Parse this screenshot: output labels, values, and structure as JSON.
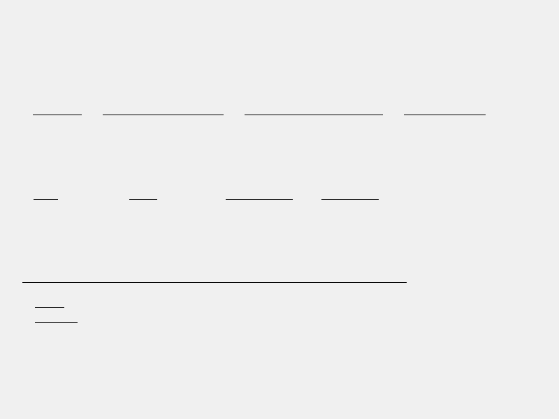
{
  "form": {
    "row1": [
      "",
      "",
      "",
      ""
    ],
    "row2": [
      "",
      "",
      "",
      ""
    ],
    "list": [
      "",
      ""
    ]
  }
}
